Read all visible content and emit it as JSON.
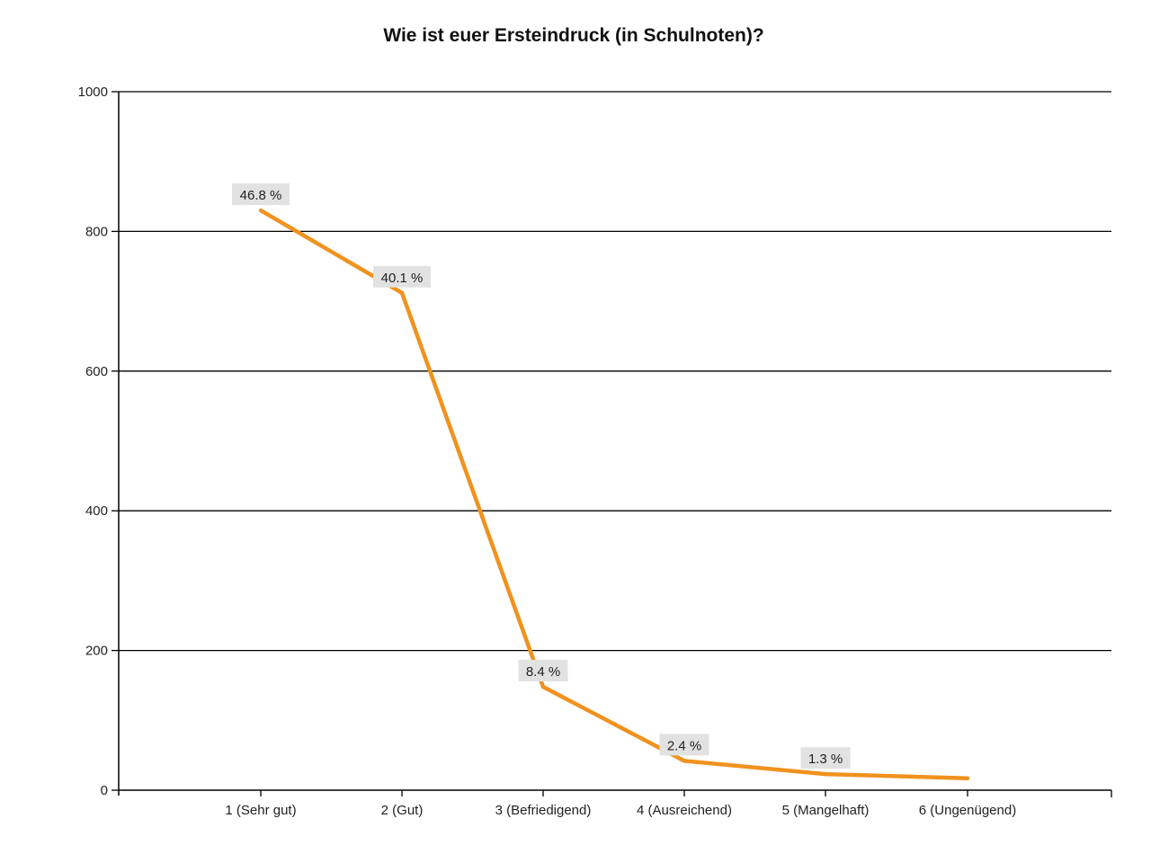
{
  "chart_data": {
    "type": "line",
    "title": "Wie ist euer Ersteindruck (in Schulnoten)?",
    "xlabel": "",
    "ylabel": "",
    "categories": [
      "1 (Sehr gut)",
      "2 (Gut)",
      "3 (Befriedigend)",
      "4 (Ausreichend)",
      "5 (Mangelhaft)",
      "6 (Ungenügend)"
    ],
    "series": [
      {
        "values": [
          830,
          712,
          148,
          42,
          23,
          17
        ],
        "color": "#f0921e"
      }
    ],
    "data_labels": [
      "46.8 %",
      "40.1 %",
      "8.4 %",
      "2.4 %",
      "1.3 %",
      ""
    ],
    "ylim": [
      0,
      1000
    ],
    "yticks": [
      0,
      200,
      400,
      600,
      800,
      1000
    ],
    "grid": true,
    "legend": "none"
  }
}
